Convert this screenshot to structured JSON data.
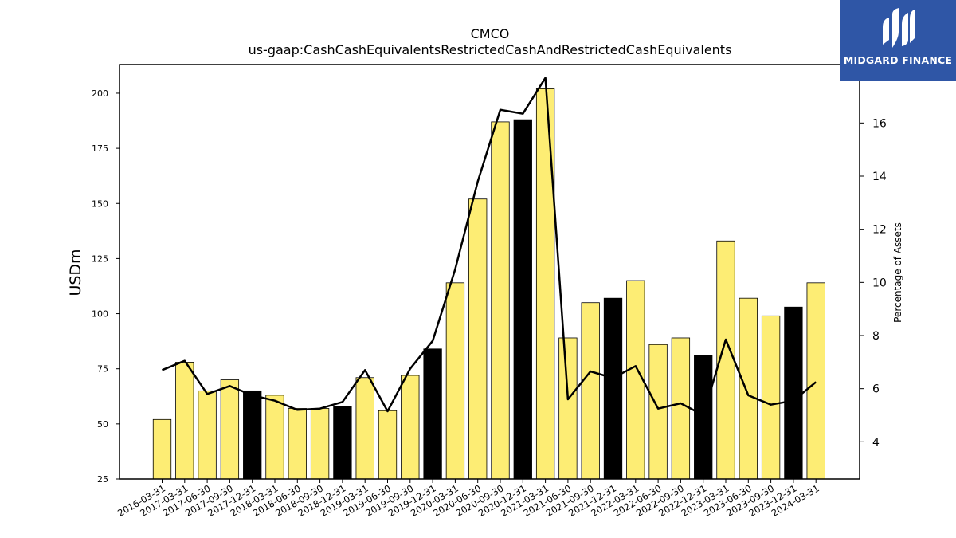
{
  "chart_data": {
    "type": "bar",
    "title": "CMCO",
    "subtitle": "us-gaap:CashCashEquivalentsRestrictedCashAndRestrictedCashEquivalents",
    "ylabel": "USDm",
    "y2label": "Percentage of Assets",
    "ylim": [
      25,
      213
    ],
    "y2lim": [
      2.6,
      18.2
    ],
    "yticks": [
      25,
      50,
      75,
      100,
      125,
      150,
      175,
      200
    ],
    "y2ticks": [
      4,
      6,
      8,
      10,
      12,
      14,
      16
    ],
    "categories": [
      "2016-03-31",
      "2017-03-31",
      "2017-06-30",
      "2017-09-30",
      "2017-12-31",
      "2018-03-31",
      "2018-06-30",
      "2018-09-30",
      "2018-12-31",
      "2019-03-31",
      "2019-06-30",
      "2019-09-30",
      "2019-12-31",
      "2020-03-31",
      "2020-06-30",
      "2020-09-30",
      "2020-12-31",
      "2021-03-31",
      "2021-06-30",
      "2021-09-30",
      "2021-12-31",
      "2022-03-31",
      "2022-06-30",
      "2022-09-30",
      "2022-12-31",
      "2023-03-31",
      "2023-06-30",
      "2023-09-30",
      "2023-12-31",
      "2024-03-31"
    ],
    "series": [
      {
        "type": "bar",
        "values": [
          52,
          78,
          65,
          70,
          65,
          63,
          57,
          57,
          58,
          71,
          56,
          72,
          84,
          114,
          152,
          187,
          188,
          202,
          89,
          105,
          107,
          115,
          86,
          89,
          81,
          133,
          107,
          99,
          103,
          114
        ],
        "highlight": [
          false,
          false,
          false,
          false,
          true,
          false,
          false,
          false,
          true,
          false,
          false,
          false,
          true,
          false,
          false,
          false,
          true,
          false,
          false,
          false,
          true,
          false,
          false,
          false,
          true,
          false,
          false,
          false,
          true,
          false
        ]
      },
      {
        "type": "line",
        "axis": "right",
        "values": [
          6.7,
          7.05,
          5.8,
          6.1,
          5.75,
          5.55,
          5.2,
          5.25,
          5.5,
          6.7,
          5.15,
          6.75,
          7.8,
          10.5,
          13.8,
          16.5,
          16.35,
          17.7,
          5.6,
          6.65,
          6.4,
          6.85,
          5.25,
          5.45,
          5.0,
          7.85,
          5.75,
          5.4,
          5.55,
          6.25
        ]
      }
    ],
    "colors": {
      "bar": "#fded74",
      "bar_highlight": "#000000",
      "bar_edge": "#000000",
      "line": "#000000"
    }
  },
  "logo": {
    "text": "MIDGARD FINANCE",
    "bg": "#2f56a6"
  }
}
